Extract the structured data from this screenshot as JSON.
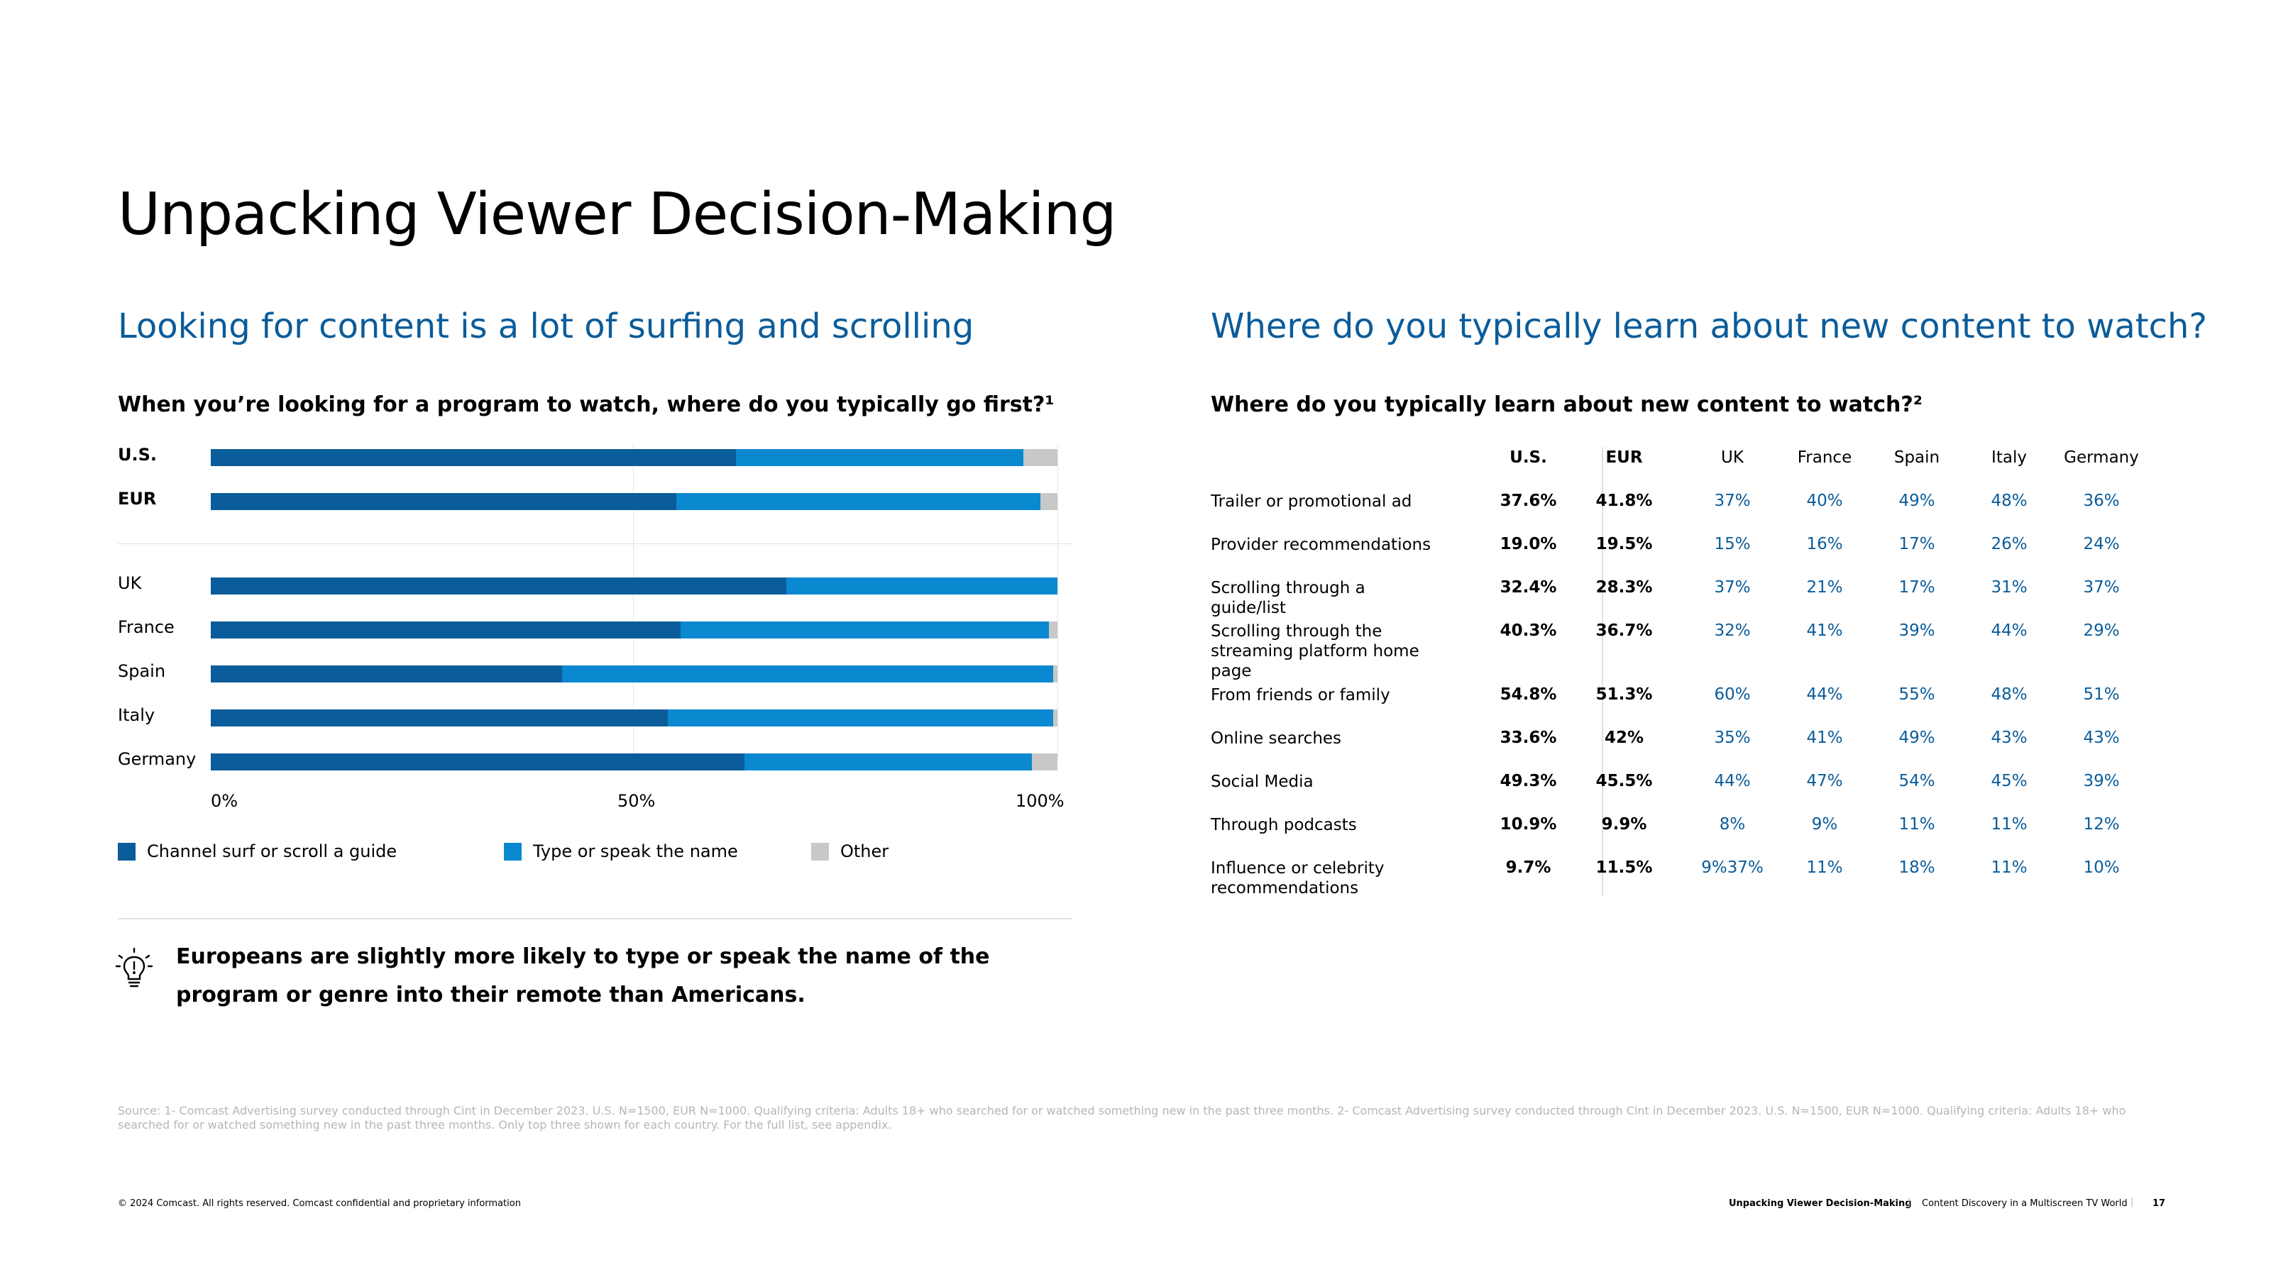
{
  "page_title": "Unpacking Viewer Decision-Making",
  "left": {
    "subhead": "Looking for content is a lot of surfing and scrolling",
    "question": "When you’re looking for a program to watch, where do you typically go first?¹"
  },
  "right": {
    "subhead": "Where do you typically learn about new content to watch?",
    "question": "Where do you typically learn about new content to watch?²"
  },
  "colors": {
    "channel": "#0b5c9a",
    "type": "#0a88d0",
    "other": "#c8c8c8",
    "accent_text": "#0b5c9a"
  },
  "chart_data": [
    {
      "type": "bar",
      "orientation": "horizontal",
      "stacked": true,
      "normalized": true,
      "categories": [
        "U.S.",
        "EUR",
        "UK",
        "France",
        "Spain",
        "Italy",
        "Germany"
      ],
      "series": [
        {
          "name": "Channel surf or scroll a guide",
          "color": "#0b5c9a",
          "values": [
            62,
            55,
            68,
            55.5,
            41.5,
            54,
            63
          ]
        },
        {
          "name": "Type or speak the name",
          "color": "#0a88d0",
          "values": [
            34,
            43,
            32,
            43.5,
            58,
            45.5,
            34
          ]
        },
        {
          "name": "Other",
          "color": "#c8c8c8",
          "values": [
            4,
            2,
            0,
            1,
            0.5,
            0.5,
            3
          ]
        }
      ],
      "xlim": [
        0,
        100
      ],
      "xticks": [
        "0%",
        "50%",
        "100%"
      ],
      "grid": true,
      "legend_position": "bottom"
    },
    {
      "type": "table",
      "columns": [
        "",
        "U.S.",
        "EUR",
        "UK",
        "France",
        "Spain",
        "Italy",
        "Germany"
      ],
      "rows": [
        [
          "Trailer or promotional ad",
          "37.6%",
          "41.8%",
          "37%",
          "40%",
          "49%",
          "48%",
          "36%"
        ],
        [
          "Provider recommendations",
          "19.0%",
          "19.5%",
          "15%",
          "16%",
          "17%",
          "26%",
          "24%"
        ],
        [
          "Scrolling through a guide/list",
          "32.4%",
          "28.3%",
          "37%",
          "21%",
          "17%",
          "31%",
          "37%"
        ],
        [
          "Scrolling through the streaming platform home page",
          "40.3%",
          "36.7%",
          "32%",
          "41%",
          "39%",
          "44%",
          "29%"
        ],
        [
          "From friends or family",
          "54.8%",
          "51.3%",
          "60%",
          "44%",
          "55%",
          "48%",
          "51%"
        ],
        [
          "Online searches",
          "33.6%",
          "42%",
          "35%",
          "41%",
          "49%",
          "43%",
          "43%"
        ],
        [
          "Social Media",
          "49.3%",
          "45.5%",
          "44%",
          "47%",
          "54%",
          "45%",
          "39%"
        ],
        [
          "Through podcasts",
          "10.9%",
          "9.9%",
          "8%",
          "9%",
          "11%",
          "11%",
          "12%"
        ],
        [
          "Influence or celebrity recommendations",
          "9.7%",
          "11.5%",
          "9%37%",
          "11%",
          "18%",
          "11%",
          "10%"
        ]
      ]
    }
  ],
  "insight": {
    "icon": "lightbulb-icon",
    "text": "Europeans are slightly more likely to type or speak the name of the program or genre into their remote than Americans."
  },
  "source": "Source: 1- Comcast Advertising survey conducted through Cint in December 2023. U.S. N=1500, EUR N=1000. Qualifying criteria: Adults 18+ who searched for or watched something new in the past three months. 2- Comcast Advertising survey conducted through Cint in December 2023. U.S. N=1500, EUR N=1000. Qualifying criteria: Adults 18+ who searched for or watched something new in the past three months. Only top three shown for each country. For the full list, see appendix.",
  "footer": {
    "copyright": "© 2024 Comcast. All rights reserved. Comcast confidential and proprietary information",
    "section": "Unpacking Viewer Decision-Making",
    "report": "Content Discovery in a Multiscreen TV World",
    "page_number": "17"
  }
}
